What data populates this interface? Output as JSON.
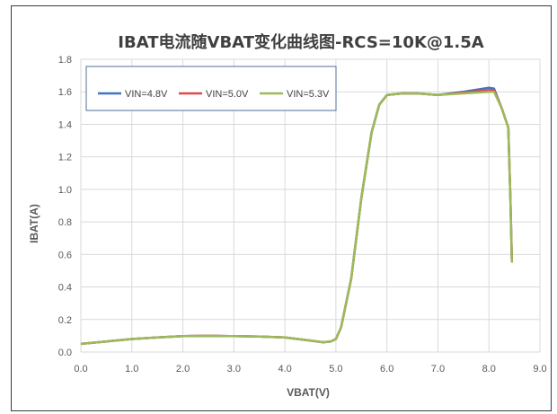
{
  "chart_data": {
    "type": "line",
    "title": "IBAT电流随VBAT变化曲线图-RCS=10K@1.5A",
    "xlabel": "VBAT(V)",
    "ylabel": "IBAT(A)",
    "xlim": [
      0,
      9
    ],
    "ylim": [
      0,
      1.8
    ],
    "xticks": [
      "0.0",
      "1.0",
      "2.0",
      "3.0",
      "4.0",
      "5.0",
      "6.0",
      "7.0",
      "8.0",
      "9.0"
    ],
    "yticks": [
      "0.0",
      "0.2",
      "0.4",
      "0.6",
      "0.8",
      "1.0",
      "1.2",
      "1.4",
      "1.6",
      "1.8"
    ],
    "grid": true,
    "legend_position": "top-left",
    "series": [
      {
        "name": "VIN=4.8V",
        "color": "#4472C4",
        "points": [
          [
            0,
            0.05
          ],
          [
            0.5,
            0.065
          ],
          [
            1.0,
            0.08
          ],
          [
            1.5,
            0.09
          ],
          [
            2.0,
            0.098
          ],
          [
            2.5,
            0.1
          ],
          [
            3.0,
            0.098
          ],
          [
            3.5,
            0.095
          ],
          [
            4.0,
            0.09
          ],
          [
            4.5,
            0.07
          ],
          [
            4.75,
            0.06
          ],
          [
            4.9,
            0.065
          ],
          [
            5.0,
            0.08
          ],
          [
            5.1,
            0.15
          ],
          [
            5.3,
            0.45
          ],
          [
            5.5,
            0.95
          ],
          [
            5.7,
            1.35
          ],
          [
            5.85,
            1.52
          ],
          [
            6.0,
            1.58
          ],
          [
            6.3,
            1.59
          ],
          [
            6.6,
            1.59
          ],
          [
            7.0,
            1.58
          ],
          [
            7.5,
            1.6
          ],
          [
            8.0,
            1.625
          ],
          [
            8.1,
            1.62
          ],
          [
            8.25,
            1.5
          ],
          [
            8.38,
            1.38
          ],
          [
            8.42,
            0.95
          ],
          [
            8.45,
            0.55
          ]
        ]
      },
      {
        "name": "VIN=5.0V",
        "color": "#E0484A",
        "points": [
          [
            0,
            0.05
          ],
          [
            0.5,
            0.065
          ],
          [
            1.0,
            0.08
          ],
          [
            1.5,
            0.09
          ],
          [
            2.0,
            0.098
          ],
          [
            2.5,
            0.1
          ],
          [
            3.0,
            0.098
          ],
          [
            3.5,
            0.095
          ],
          [
            4.0,
            0.09
          ],
          [
            4.5,
            0.07
          ],
          [
            4.75,
            0.06
          ],
          [
            4.9,
            0.065
          ],
          [
            5.0,
            0.08
          ],
          [
            5.1,
            0.15
          ],
          [
            5.3,
            0.45
          ],
          [
            5.5,
            0.95
          ],
          [
            5.7,
            1.35
          ],
          [
            5.85,
            1.52
          ],
          [
            6.0,
            1.58
          ],
          [
            6.3,
            1.59
          ],
          [
            6.6,
            1.59
          ],
          [
            7.0,
            1.58
          ],
          [
            7.5,
            1.595
          ],
          [
            8.0,
            1.61
          ],
          [
            8.1,
            1.61
          ],
          [
            8.25,
            1.5
          ],
          [
            8.38,
            1.38
          ],
          [
            8.42,
            0.95
          ],
          [
            8.45,
            0.55
          ]
        ]
      },
      {
        "name": "VIN=5.3V",
        "color": "#9BBB59",
        "points": [
          [
            0,
            0.05
          ],
          [
            0.5,
            0.065
          ],
          [
            1.0,
            0.08
          ],
          [
            1.5,
            0.09
          ],
          [
            2.0,
            0.098
          ],
          [
            2.5,
            0.1
          ],
          [
            3.0,
            0.098
          ],
          [
            3.5,
            0.095
          ],
          [
            4.0,
            0.09
          ],
          [
            4.5,
            0.07
          ],
          [
            4.75,
            0.06
          ],
          [
            4.9,
            0.065
          ],
          [
            5.0,
            0.08
          ],
          [
            5.1,
            0.15
          ],
          [
            5.3,
            0.45
          ],
          [
            5.5,
            0.95
          ],
          [
            5.7,
            1.35
          ],
          [
            5.85,
            1.52
          ],
          [
            6.0,
            1.58
          ],
          [
            6.3,
            1.59
          ],
          [
            6.6,
            1.59
          ],
          [
            7.0,
            1.58
          ],
          [
            7.5,
            1.59
          ],
          [
            8.0,
            1.6
          ],
          [
            8.1,
            1.6
          ],
          [
            8.25,
            1.5
          ],
          [
            8.38,
            1.38
          ],
          [
            8.42,
            0.95
          ],
          [
            8.45,
            0.55
          ]
        ]
      }
    ]
  }
}
